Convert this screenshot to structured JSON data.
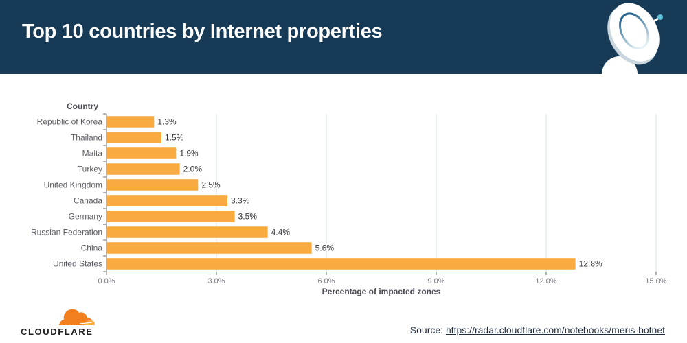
{
  "header": {
    "title": "Top 10 countries by Internet properties",
    "background_color": "#173b57"
  },
  "chart_data": {
    "type": "bar",
    "orientation": "horizontal",
    "title": "Top 10 countries by Internet properties",
    "ylabel": "Country",
    "xlabel": "Percentage of impacted zones",
    "categories": [
      "Republic of Korea",
      "Thailand",
      "Malta",
      "Turkey",
      "United Kingdom",
      "Canada",
      "Germany",
      "Russian Federation",
      "China",
      "United States"
    ],
    "values": [
      1.3,
      1.5,
      1.9,
      2.0,
      2.5,
      3.3,
      3.5,
      4.4,
      5.6,
      12.8
    ],
    "value_labels": [
      "1.3%",
      "1.5%",
      "1.9%",
      "2.0%",
      "2.5%",
      "3.3%",
      "3.5%",
      "4.4%",
      "5.6%",
      "12.8%"
    ],
    "xlim": [
      0,
      15
    ],
    "x_ticks": [
      0,
      3,
      6,
      9,
      12,
      15
    ],
    "x_tick_labels": [
      "0.0%",
      "3.0%",
      "6.0%",
      "9.0%",
      "12.0%",
      "15.0%"
    ],
    "grid": "vertical",
    "bar_color": "#f9ab41",
    "legend": "none"
  },
  "footer": {
    "logo_text": "CLOUDFLARE",
    "source_prefix": "Source: ",
    "source_link": "https://radar.cloudflare.com/notebooks/meris-botnet"
  },
  "icons": {
    "header_icon": "satellite-dish-icon",
    "footer_logo": "cloudflare-cloud-icon"
  }
}
